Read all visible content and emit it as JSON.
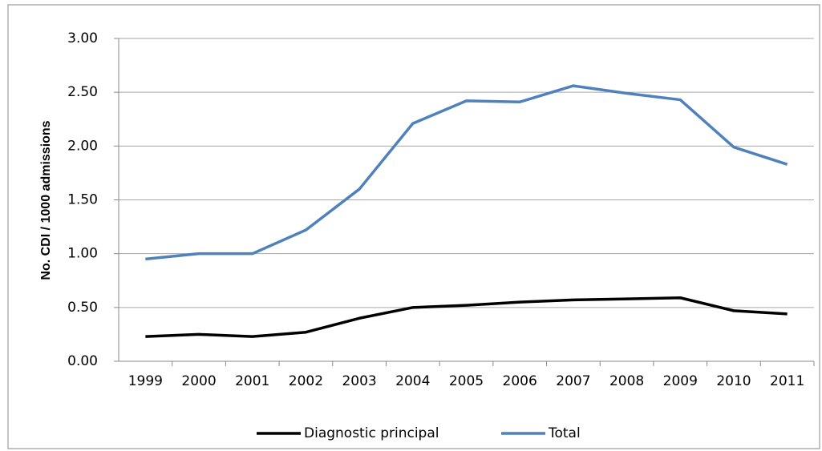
{
  "chart_data": {
    "type": "line",
    "y_label": "No. CDI  / 1000 admissions",
    "categories": [
      "1999",
      "2000",
      "2001",
      "2002",
      "2003",
      "2004",
      "2005",
      "2006",
      "2007",
      "2008",
      "2009",
      "2010",
      "2011"
    ],
    "series": [
      {
        "name": "Diagnostic principal",
        "color": "#000000",
        "values": [
          0.23,
          0.25,
          0.23,
          0.27,
          0.4,
          0.5,
          0.52,
          0.55,
          0.57,
          0.58,
          0.59,
          0.47,
          0.44
        ]
      },
      {
        "name": "Total",
        "color": "#4f81bd",
        "values": [
          0.95,
          1.0,
          1.0,
          1.22,
          1.6,
          2.21,
          2.42,
          2.41,
          2.56,
          2.49,
          2.43,
          1.99,
          1.83
        ]
      }
    ],
    "ylim": [
      0,
      3
    ],
    "yticks": [
      {
        "value": 0,
        "label": "0.00"
      },
      {
        "value": 0.5,
        "label": "0.50"
      },
      {
        "value": 1,
        "label": "1.00"
      },
      {
        "value": 1.5,
        "label": "1.50"
      },
      {
        "value": 2,
        "label": "2.00"
      },
      {
        "value": 2.5,
        "label": "2.50"
      },
      {
        "value": 3,
        "label": "3.00"
      }
    ],
    "grid": true,
    "legend": "bottom"
  }
}
